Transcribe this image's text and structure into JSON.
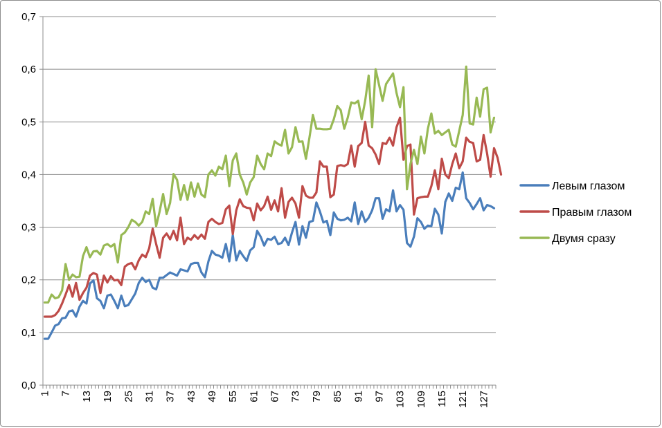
{
  "chart_data": {
    "type": "line",
    "title": "",
    "xlabel": "",
    "ylabel": "",
    "ylim": [
      0,
      0.7
    ],
    "y_ticks": [
      0.0,
      0.1,
      0.2,
      0.3,
      0.4,
      0.5,
      0.6,
      0.7
    ],
    "y_tick_labels": [
      "0,0",
      "0,1",
      "0,2",
      "0,3",
      "0,4",
      "0,5",
      "0,6",
      "0,7"
    ],
    "x_range": [
      1,
      130
    ],
    "x_tick_labels": [
      "1",
      "7",
      "13",
      "19",
      "25",
      "31",
      "37",
      "43",
      "49",
      "55",
      "61",
      "67",
      "73",
      "79",
      "85",
      "91",
      "97",
      "103",
      "109",
      "115",
      "121",
      "127"
    ],
    "grid": "horizontal",
    "legend_position": "right",
    "series": [
      {
        "name": "Левым глазом",
        "color": "#4a7ebb",
        "values": [
          0.088,
          0.088,
          0.1,
          0.113,
          0.116,
          0.127,
          0.128,
          0.14,
          0.142,
          0.13,
          0.149,
          0.16,
          0.155,
          0.193,
          0.199,
          0.165,
          0.16,
          0.146,
          0.17,
          0.172,
          0.16,
          0.146,
          0.17,
          0.15,
          0.152,
          0.163,
          0.174,
          0.194,
          0.204,
          0.196,
          0.2,
          0.185,
          0.182,
          0.204,
          0.204,
          0.209,
          0.214,
          0.211,
          0.208,
          0.22,
          0.218,
          0.216,
          0.23,
          0.232,
          0.232,
          0.214,
          0.205,
          0.235,
          0.255,
          0.248,
          0.246,
          0.242,
          0.268,
          0.235,
          0.285,
          0.237,
          0.255,
          0.245,
          0.236,
          0.256,
          0.262,
          0.293,
          0.282,
          0.265,
          0.278,
          0.276,
          0.282,
          0.268,
          0.27,
          0.28,
          0.266,
          0.29,
          0.31,
          0.267,
          0.302,
          0.28,
          0.31,
          0.312,
          0.347,
          0.33,
          0.309,
          0.312,
          0.285,
          0.328,
          0.316,
          0.313,
          0.314,
          0.318,
          0.311,
          0.347,
          0.306,
          0.33,
          0.31,
          0.318,
          0.332,
          0.355,
          0.355,
          0.316,
          0.334,
          0.33,
          0.37,
          0.33,
          0.342,
          0.333,
          0.27,
          0.263,
          0.282,
          0.317,
          0.31,
          0.297,
          0.303,
          0.302,
          0.335,
          0.324,
          0.288,
          0.348,
          0.364,
          0.35,
          0.375,
          0.372,
          0.404,
          0.355,
          0.346,
          0.334,
          0.344,
          0.355,
          0.332,
          0.342,
          0.34,
          0.336
        ]
      },
      {
        "name": "Правым глазом",
        "color": "#be4b48",
        "values": [
          0.13,
          0.13,
          0.13,
          0.133,
          0.141,
          0.155,
          0.172,
          0.19,
          0.168,
          0.194,
          0.162,
          0.175,
          0.185,
          0.208,
          0.213,
          0.21,
          0.175,
          0.208,
          0.195,
          0.207,
          0.199,
          0.2,
          0.19,
          0.225,
          0.23,
          0.232,
          0.22,
          0.237,
          0.248,
          0.243,
          0.26,
          0.297,
          0.268,
          0.242,
          0.28,
          0.288,
          0.277,
          0.293,
          0.275,
          0.318,
          0.268,
          0.28,
          0.276,
          0.285,
          0.278,
          0.286,
          0.278,
          0.31,
          0.316,
          0.31,
          0.306,
          0.308,
          0.334,
          0.341,
          0.287,
          0.332,
          0.353,
          0.34,
          0.337,
          0.336,
          0.313,
          0.345,
          0.332,
          0.34,
          0.358,
          0.333,
          0.351,
          0.33,
          0.374,
          0.318,
          0.348,
          0.356,
          0.345,
          0.318,
          0.378,
          0.36,
          0.356,
          0.356,
          0.366,
          0.425,
          0.415,
          0.415,
          0.357,
          0.362,
          0.416,
          0.418,
          0.416,
          0.42,
          0.455,
          0.415,
          0.454,
          0.46,
          0.5,
          0.455,
          0.45,
          0.438,
          0.42,
          0.46,
          0.458,
          0.47,
          0.455,
          0.49,
          0.508,
          0.428,
          0.454,
          0.457,
          0.324,
          0.355,
          0.357,
          0.358,
          0.358,
          0.378,
          0.408,
          0.372,
          0.43,
          0.4,
          0.393,
          0.42,
          0.44,
          0.412,
          0.425,
          0.47,
          0.462,
          0.46,
          0.425,
          0.428,
          0.475,
          0.44,
          0.396,
          0.45,
          0.432,
          0.4
        ]
      },
      {
        "name": "Двумя сразу",
        "color": "#98b954",
        "values": [
          0.157,
          0.157,
          0.172,
          0.165,
          0.167,
          0.18,
          0.23,
          0.2,
          0.21,
          0.205,
          0.206,
          0.245,
          0.262,
          0.243,
          0.254,
          0.255,
          0.248,
          0.265,
          0.268,
          0.263,
          0.268,
          0.233,
          0.285,
          0.29,
          0.3,
          0.314,
          0.31,
          0.303,
          0.31,
          0.33,
          0.325,
          0.354,
          0.302,
          0.33,
          0.363,
          0.325,
          0.346,
          0.401,
          0.39,
          0.352,
          0.38,
          0.352,
          0.385,
          0.358,
          0.383,
          0.362,
          0.357,
          0.4,
          0.408,
          0.398,
          0.415,
          0.41,
          0.436,
          0.378,
          0.427,
          0.44,
          0.4,
          0.385,
          0.362,
          0.385,
          0.395,
          0.436,
          0.42,
          0.41,
          0.44,
          0.435,
          0.463,
          0.458,
          0.455,
          0.485,
          0.44,
          0.452,
          0.49,
          0.462,
          0.463,
          0.43,
          0.47,
          0.513,
          0.487,
          0.487,
          0.486,
          0.486,
          0.487,
          0.505,
          0.53,
          0.522,
          0.487,
          0.508,
          0.537,
          0.535,
          0.54,
          0.505,
          0.54,
          0.588,
          0.49,
          0.6,
          0.57,
          0.54,
          0.572,
          0.582,
          0.592,
          0.555,
          0.528,
          0.566,
          0.372,
          0.42,
          0.447,
          0.42,
          0.472,
          0.44,
          0.487,
          0.516,
          0.478,
          0.483,
          0.475,
          0.48,
          0.485,
          0.457,
          0.453,
          0.483,
          0.513,
          0.605,
          0.497,
          0.495,
          0.546,
          0.51,
          0.562,
          0.565,
          0.48,
          0.508
        ]
      }
    ]
  }
}
